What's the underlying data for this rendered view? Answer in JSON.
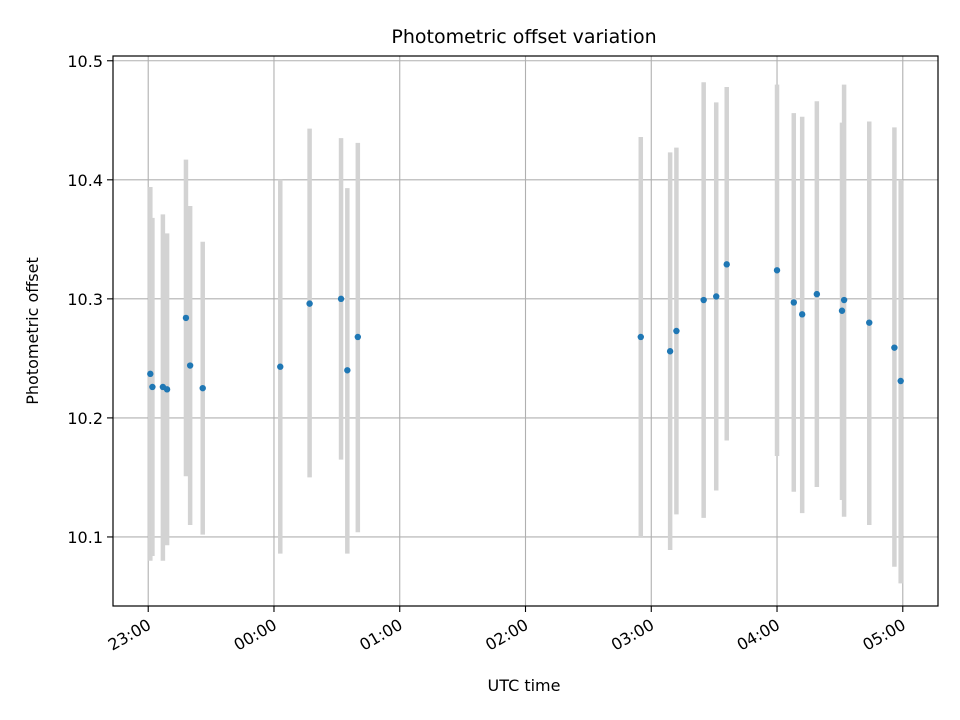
{
  "chart_data": {
    "type": "scatter",
    "title": "Photometric offset variation",
    "xlabel": "UTC time",
    "ylabel": "Photometric offset",
    "grid": true,
    "x_axis": {
      "unit": "hours since 23:00",
      "range": [
        -0.28,
        6.28
      ],
      "ticks": [
        {
          "value": 0,
          "label": "23:00"
        },
        {
          "value": 1,
          "label": "00:00"
        },
        {
          "value": 2,
          "label": "01:00"
        },
        {
          "value": 3,
          "label": "02:00"
        },
        {
          "value": 4,
          "label": "03:00"
        },
        {
          "value": 5,
          "label": "04:00"
        },
        {
          "value": 6,
          "label": "05:00"
        }
      ]
    },
    "y_axis": {
      "range": [
        10.042,
        10.504
      ],
      "ticks": [
        {
          "value": 10.1,
          "label": "10.1"
        },
        {
          "value": 10.2,
          "label": "10.2"
        },
        {
          "value": 10.3,
          "label": "10.3"
        },
        {
          "value": 10.4,
          "label": "10.4"
        },
        {
          "value": 10.5,
          "label": "10.5"
        }
      ]
    },
    "marker_color": "#1f77b4",
    "errorbar_color": "#d3d3d3",
    "series": [
      {
        "points": [
          {
            "time": "23:01",
            "y": 10.237,
            "low": 10.08,
            "high": 10.394
          },
          {
            "time": "23:02",
            "y": 10.226,
            "low": 10.084,
            "high": 10.368
          },
          {
            "time": "23:07",
            "y": 10.226,
            "low": 10.08,
            "high": 10.371
          },
          {
            "time": "23:09",
            "y": 10.224,
            "low": 10.093,
            "high": 10.355
          },
          {
            "time": "23:18",
            "y": 10.284,
            "low": 10.151,
            "high": 10.417
          },
          {
            "time": "23:20",
            "y": 10.244,
            "low": 10.11,
            "high": 10.378
          },
          {
            "time": "23:26",
            "y": 10.225,
            "low": 10.102,
            "high": 10.348
          },
          {
            "time": "00:03",
            "y": 10.243,
            "low": 10.086,
            "high": 10.4
          },
          {
            "time": "00:17",
            "y": 10.296,
            "low": 10.15,
            "high": 10.443
          },
          {
            "time": "00:32",
            "y": 10.3,
            "low": 10.165,
            "high": 10.435
          },
          {
            "time": "00:35",
            "y": 10.24,
            "low": 10.086,
            "high": 10.393
          },
          {
            "time": "00:40",
            "y": 10.268,
            "low": 10.104,
            "high": 10.431
          },
          {
            "time": "02:55",
            "y": 10.268,
            "low": 10.1,
            "high": 10.436
          },
          {
            "time": "03:09",
            "y": 10.256,
            "low": 10.089,
            "high": 10.423
          },
          {
            "time": "03:12",
            "y": 10.273,
            "low": 10.119,
            "high": 10.427
          },
          {
            "time": "03:25",
            "y": 10.299,
            "low": 10.116,
            "high": 10.482
          },
          {
            "time": "03:31",
            "y": 10.302,
            "low": 10.139,
            "high": 10.465
          },
          {
            "time": "03:36",
            "y": 10.329,
            "low": 10.181,
            "high": 10.478
          },
          {
            "time": "04:00",
            "y": 10.324,
            "low": 10.168,
            "high": 10.48
          },
          {
            "time": "04:08",
            "y": 10.297,
            "low": 10.138,
            "high": 10.456
          },
          {
            "time": "04:12",
            "y": 10.287,
            "low": 10.12,
            "high": 10.453
          },
          {
            "time": "04:19",
            "y": 10.304,
            "low": 10.142,
            "high": 10.466
          },
          {
            "time": "04:31",
            "y": 10.29,
            "low": 10.131,
            "high": 10.448
          },
          {
            "time": "04:32",
            "y": 10.299,
            "low": 10.117,
            "high": 10.48
          },
          {
            "time": "04:44",
            "y": 10.28,
            "low": 10.11,
            "high": 10.449
          },
          {
            "time": "04:56",
            "y": 10.259,
            "low": 10.075,
            "high": 10.444
          },
          {
            "time": "04:59",
            "y": 10.231,
            "low": 10.061,
            "high": 10.4
          }
        ]
      }
    ]
  }
}
